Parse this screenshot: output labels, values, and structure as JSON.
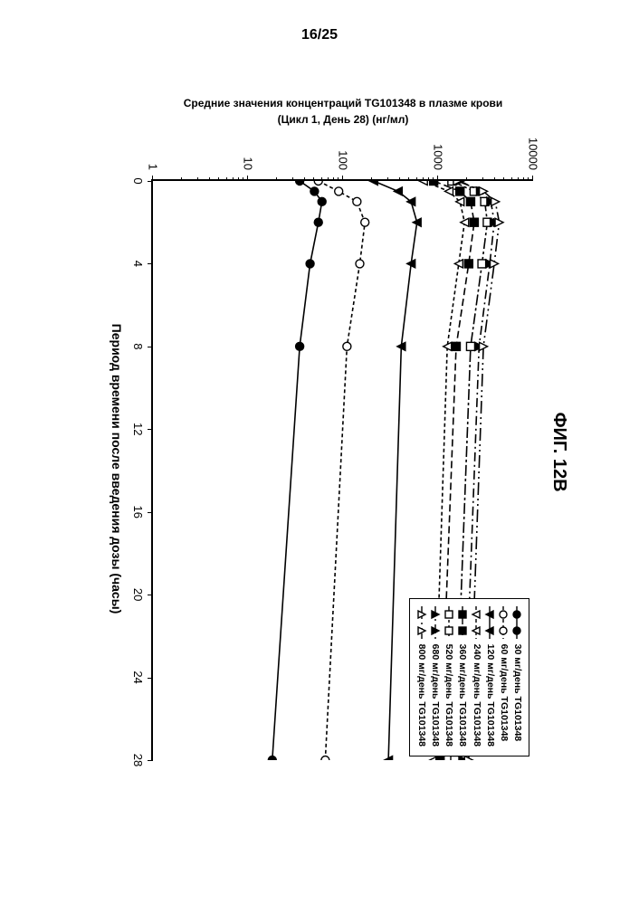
{
  "page_number": "16/25",
  "figure_title": "ФИГ. 12B",
  "axes": {
    "x": {
      "label": "Период времени после введения дозы (часы)",
      "min": 0,
      "max": 28,
      "tick_step": 4,
      "ticks": [
        0,
        4,
        8,
        12,
        16,
        20,
        24,
        28
      ],
      "fontsize": 14
    },
    "y": {
      "label_line1": "Средние значения концентраций TG101348 в плазме крови",
      "label_line2": "(Цикл 1, День 28) (нг/мл)",
      "scale": "log",
      "min": 1,
      "max": 10000,
      "ticks": [
        1,
        10,
        100,
        1000,
        10000
      ],
      "tick_labels": [
        "1",
        "10",
        "100",
        "1000",
        "10000"
      ],
      "fontsize": 12
    }
  },
  "legend": {
    "position": "top-right (inside plot)",
    "border_color": "#000000",
    "entries": [
      {
        "key": "s30",
        "label": "30 мг/день TG101348"
      },
      {
        "key": "s60",
        "label": "60 мг/день TG101348"
      },
      {
        "key": "s120",
        "label": "120 мг/день TG101348"
      },
      {
        "key": "s240",
        "label": "240 мг/день TG101348"
      },
      {
        "key": "s360",
        "label": "360 мг/день TG101348"
      },
      {
        "key": "s520",
        "label": "520 мг/день TG101348"
      },
      {
        "key": "s680",
        "label": "680 мг/день TG101348"
      },
      {
        "key": "s800",
        "label": "800 мг/день TG101348"
      }
    ]
  },
  "styling": {
    "background_color": "#ffffff",
    "axis_color": "#000000",
    "line_width": 1.6,
    "marker_size": 9
  },
  "series": {
    "s30": {
      "marker": "circle",
      "fill": "#000000",
      "dash": "",
      "x": [
        0,
        0.5,
        1,
        2,
        4,
        8,
        28
      ],
      "y": [
        35,
        50,
        60,
        55,
        45,
        35,
        18
      ]
    },
    "s60": {
      "marker": "circle",
      "fill": "#ffffff",
      "dash": "4 3",
      "x": [
        0,
        0.5,
        1,
        2,
        4,
        8,
        28
      ],
      "y": [
        55,
        90,
        140,
        170,
        150,
        110,
        65
      ]
    },
    "s120": {
      "marker": "triangle-down",
      "fill": "#000000",
      "dash": "",
      "x": [
        0,
        0.5,
        1,
        2,
        4,
        8,
        28
      ],
      "y": [
        210,
        380,
        520,
        600,
        520,
        410,
        300
      ]
    },
    "s240": {
      "marker": "triangle-down",
      "fill": "#ffffff",
      "dash": "4 3",
      "x": [
        0,
        0.5,
        1,
        2,
        4,
        8,
        28
      ],
      "y": [
        700,
        1300,
        1700,
        1900,
        1650,
        1250,
        900
      ]
    },
    "s360": {
      "marker": "square",
      "fill": "#000000",
      "dash": "8 4",
      "x": [
        0,
        0.5,
        1,
        2,
        4,
        8,
        28
      ],
      "y": [
        900,
        1700,
        2200,
        2400,
        2100,
        1550,
        1050
      ]
    },
    "s520": {
      "marker": "square",
      "fill": "#ffffff",
      "dash": "12 3 3 3",
      "x": [
        0,
        0.5,
        1,
        2,
        4,
        8,
        28
      ],
      "y": [
        1400,
        2400,
        3100,
        3300,
        2900,
        2200,
        1500
      ]
    },
    "s680": {
      "marker": "triangle-up",
      "fill": "#000000",
      "dash": "10 4 2 4",
      "x": [
        0,
        0.5,
        1,
        2,
        4,
        8,
        28
      ],
      "y": [
        1700,
        2800,
        3600,
        3900,
        3500,
        2700,
        1850
      ]
    },
    "s800": {
      "marker": "triangle-up",
      "fill": "#ffffff",
      "dash": "14 4 2 4 2 4",
      "x": [
        0,
        0.5,
        1,
        2,
        4,
        8,
        28
      ],
      "y": [
        1600,
        3000,
        4000,
        4400,
        3900,
        3000,
        2100
      ]
    }
  }
}
